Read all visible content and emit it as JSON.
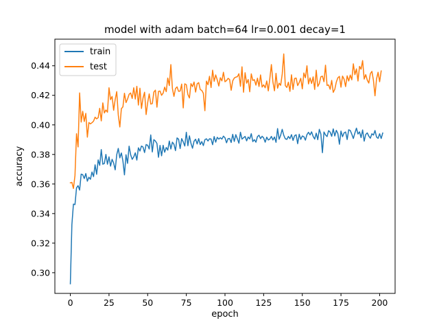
{
  "chart_data": {
    "type": "line",
    "title": "model with adam batch=64 lr=0.001 decay=1",
    "xlabel": "epoch",
    "ylabel": "accuracy",
    "xlim": [
      -10,
      210
    ],
    "ylim": [
      0.286,
      0.458
    ],
    "xticks": [
      0,
      25,
      50,
      75,
      100,
      125,
      150,
      175,
      200
    ],
    "yticks": [
      0.3,
      0.32,
      0.34,
      0.36,
      0.38,
      0.4,
      0.42,
      0.44
    ],
    "xtick_labels": [
      "0",
      "25",
      "50",
      "75",
      "100",
      "125",
      "150",
      "175",
      "200"
    ],
    "ytick_labels": [
      "0.30",
      "0.32",
      "0.34",
      "0.36",
      "0.38",
      "0.40",
      "0.42",
      "0.44"
    ],
    "grid": false,
    "legend_position": "top-left",
    "series": [
      {
        "name": "train",
        "color": "#1f77b4",
        "x_start": 0,
        "x_step": 1,
        "values": [
          0.2925,
          0.3325,
          0.3464,
          0.3461,
          0.3574,
          0.3589,
          0.3559,
          0.3667,
          0.3663,
          0.3637,
          0.3671,
          0.3619,
          0.3646,
          0.3632,
          0.3681,
          0.365,
          0.373,
          0.3666,
          0.3763,
          0.3726,
          0.3833,
          0.3734,
          0.3739,
          0.38,
          0.3734,
          0.3784,
          0.3721,
          0.3767,
          0.3742,
          0.3696,
          0.3798,
          0.3841,
          0.3777,
          0.381,
          0.3756,
          0.3662,
          0.3798,
          0.374,
          0.3856,
          0.3798,
          0.3767,
          0.3784,
          0.3811,
          0.3762,
          0.3845,
          0.3823,
          0.3857,
          0.385,
          0.3813,
          0.3867,
          0.3862,
          0.3837,
          0.3932,
          0.3817,
          0.39,
          0.3891,
          0.3874,
          0.3781,
          0.3861,
          0.3791,
          0.3862,
          0.3815,
          0.3847,
          0.3829,
          0.3891,
          0.3837,
          0.3883,
          0.3869,
          0.3826,
          0.3912,
          0.3903,
          0.384,
          0.3907,
          0.3885,
          0.3857,
          0.395,
          0.3859,
          0.3926,
          0.3875,
          0.3842,
          0.389,
          0.3903,
          0.3871,
          0.3907,
          0.3867,
          0.3887,
          0.386,
          0.39,
          0.3906,
          0.3891,
          0.3906,
          0.3904,
          0.3866,
          0.3921,
          0.3883,
          0.3916,
          0.3904,
          0.3913,
          0.3904,
          0.3924,
          0.3913,
          0.3879,
          0.3907,
          0.3908,
          0.3881,
          0.3936,
          0.3888,
          0.3934,
          0.3906,
          0.3876,
          0.395,
          0.3904,
          0.3913,
          0.3922,
          0.3892,
          0.3918,
          0.3905,
          0.3941,
          0.3887,
          0.39,
          0.3883,
          0.3921,
          0.393,
          0.3907,
          0.3923,
          0.3912,
          0.3883,
          0.3917,
          0.3898,
          0.3904,
          0.3922,
          0.3898,
          0.3918,
          0.3882,
          0.3975,
          0.3903,
          0.393,
          0.397,
          0.393,
          0.3906,
          0.3902,
          0.3922,
          0.3907,
          0.3934,
          0.3895,
          0.3927,
          0.3933,
          0.3873,
          0.3937,
          0.3902,
          0.3925,
          0.392,
          0.3897,
          0.3934,
          0.395,
          0.3932,
          0.3953,
          0.3922,
          0.3904,
          0.3944,
          0.39,
          0.397,
          0.3938,
          0.3812,
          0.3952,
          0.3932,
          0.3921,
          0.3961,
          0.3951,
          0.3923,
          0.3973,
          0.3925,
          0.3963,
          0.3941,
          0.3869,
          0.3958,
          0.392,
          0.3946,
          0.3952,
          0.3901,
          0.3967,
          0.3962,
          0.3937,
          0.3908,
          0.3945,
          0.3978,
          0.3938,
          0.3953,
          0.3914,
          0.3966,
          0.389,
          0.3935,
          0.3946,
          0.3924,
          0.391,
          0.394,
          0.3931,
          0.3962,
          0.3918,
          0.3909,
          0.394,
          0.3908,
          0.3945
        ]
      },
      {
        "name": "test",
        "color": "#ff7f0e",
        "x_start": 0,
        "x_step": 1,
        "values": [
          0.3608,
          0.3611,
          0.357,
          0.3658,
          0.394,
          0.3851,
          0.4216,
          0.4019,
          0.4092,
          0.4023,
          0.4078,
          0.3917,
          0.4016,
          0.4007,
          0.4015,
          0.4025,
          0.4052,
          0.4041,
          0.4049,
          0.4112,
          0.4027,
          0.4149,
          0.4081,
          0.4101,
          0.4086,
          0.4251,
          0.4171,
          0.4192,
          0.4099,
          0.4172,
          0.4225,
          0.4066,
          0.3986,
          0.411,
          0.4122,
          0.4214,
          0.4151,
          0.4175,
          0.4207,
          0.4216,
          0.4179,
          0.4251,
          0.4175,
          0.4261,
          0.4134,
          0.4248,
          0.4111,
          0.4182,
          0.4221,
          0.407,
          0.415,
          0.421,
          0.4141,
          0.4144,
          0.4222,
          0.4235,
          0.412,
          0.4227,
          0.4229,
          0.42,
          0.4215,
          0.4255,
          0.4225,
          0.4317,
          0.4266,
          0.4408,
          0.4246,
          0.4193,
          0.4246,
          0.4257,
          0.4227,
          0.4229,
          0.4276,
          0.4115,
          0.4278,
          0.4272,
          0.4206,
          0.4182,
          0.4279,
          0.4259,
          0.429,
          0.4222,
          0.4278,
          0.4286,
          0.4239,
          0.4233,
          0.4214,
          0.4096,
          0.4296,
          0.4272,
          0.4329,
          0.4253,
          0.437,
          0.4295,
          0.4338,
          0.4304,
          0.4263,
          0.4319,
          0.4298,
          0.4356,
          0.4292,
          0.43,
          0.4315,
          0.4307,
          0.4234,
          0.4298,
          0.4317,
          0.4323,
          0.4326,
          0.4346,
          0.4261,
          0.4393,
          0.4221,
          0.4353,
          0.4282,
          0.4307,
          0.4224,
          0.4345,
          0.4301,
          0.4306,
          0.4269,
          0.4316,
          0.426,
          0.4338,
          0.4256,
          0.4271,
          0.4251,
          0.4297,
          0.423,
          0.4314,
          0.4408,
          0.429,
          0.4231,
          0.4349,
          0.4248,
          0.4282,
          0.4268,
          0.4343,
          0.448,
          0.4266,
          0.4253,
          0.4289,
          0.4227,
          0.4339,
          0.424,
          0.4314,
          0.4317,
          0.4266,
          0.4287,
          0.4315,
          0.4244,
          0.4351,
          0.4319,
          0.44,
          0.4277,
          0.4318,
          0.428,
          0.4325,
          0.424,
          0.437,
          0.426,
          0.428,
          0.4326,
          0.433,
          0.4292,
          0.4404,
          0.4267,
          0.427,
          0.4241,
          0.4301,
          0.422,
          0.4241,
          0.429,
          0.4319,
          0.4328,
          0.4255,
          0.433,
          0.431,
          0.4259,
          0.4332,
          0.4297,
          0.4337,
          0.4305,
          0.4413,
          0.434,
          0.4379,
          0.4297,
          0.4396,
          0.4377,
          0.4435,
          0.431,
          0.434,
          0.4303,
          0.4283,
          0.4347,
          0.4362,
          0.4301,
          0.4197,
          0.4312,
          0.4356,
          0.4292,
          0.4365
        ]
      }
    ]
  }
}
